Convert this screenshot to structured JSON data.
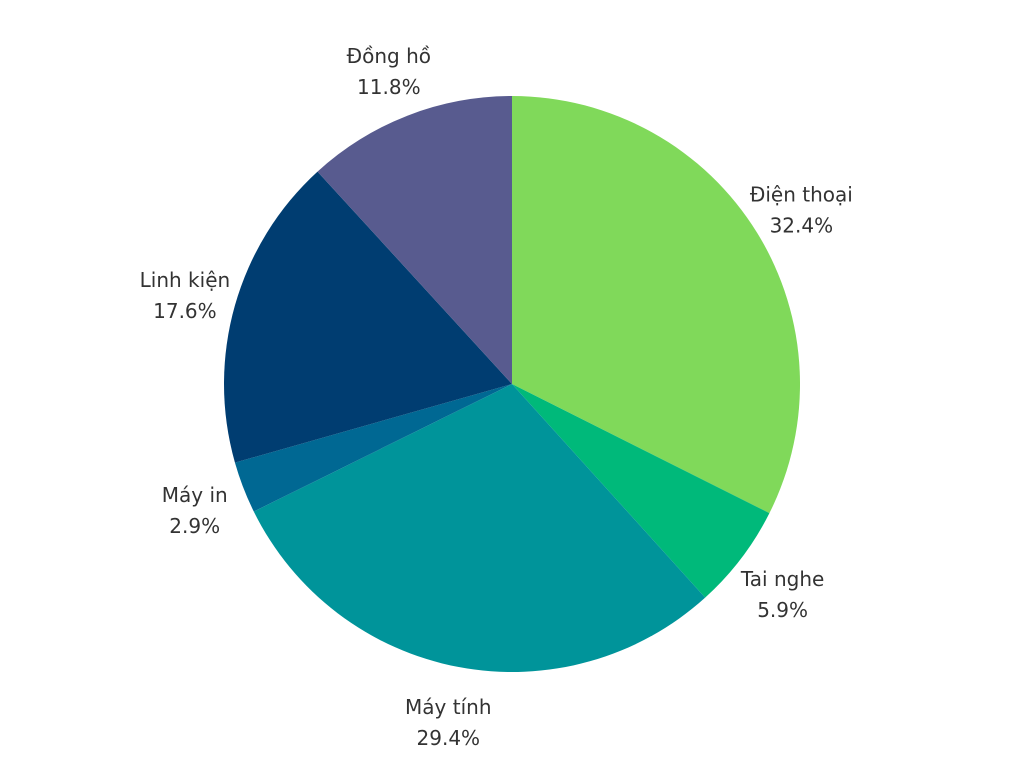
{
  "chart_data": {
    "type": "pie",
    "title": "",
    "start_angle_deg": 0,
    "direction": "clockwise",
    "slices": [
      {
        "label": "Điện thoại",
        "value": 32.4,
        "value_text": "32.4%",
        "color": "#80d95a"
      },
      {
        "label": "Tai nghe",
        "value": 5.9,
        "value_text": "5.9%",
        "color": "#00b97a"
      },
      {
        "label": "Máy tính",
        "value": 29.4,
        "value_text": "29.4%",
        "color": "#00949a"
      },
      {
        "label": "Máy in",
        "value": 2.9,
        "value_text": "2.9%",
        "color": "#006893"
      },
      {
        "label": "Linh kiện",
        "value": 17.6,
        "value_text": "17.6%",
        "color": "#003d71"
      },
      {
        "label": "Đồng hồ",
        "value": 11.8,
        "value_text": "11.8%",
        "color": "#585b8f"
      }
    ]
  }
}
